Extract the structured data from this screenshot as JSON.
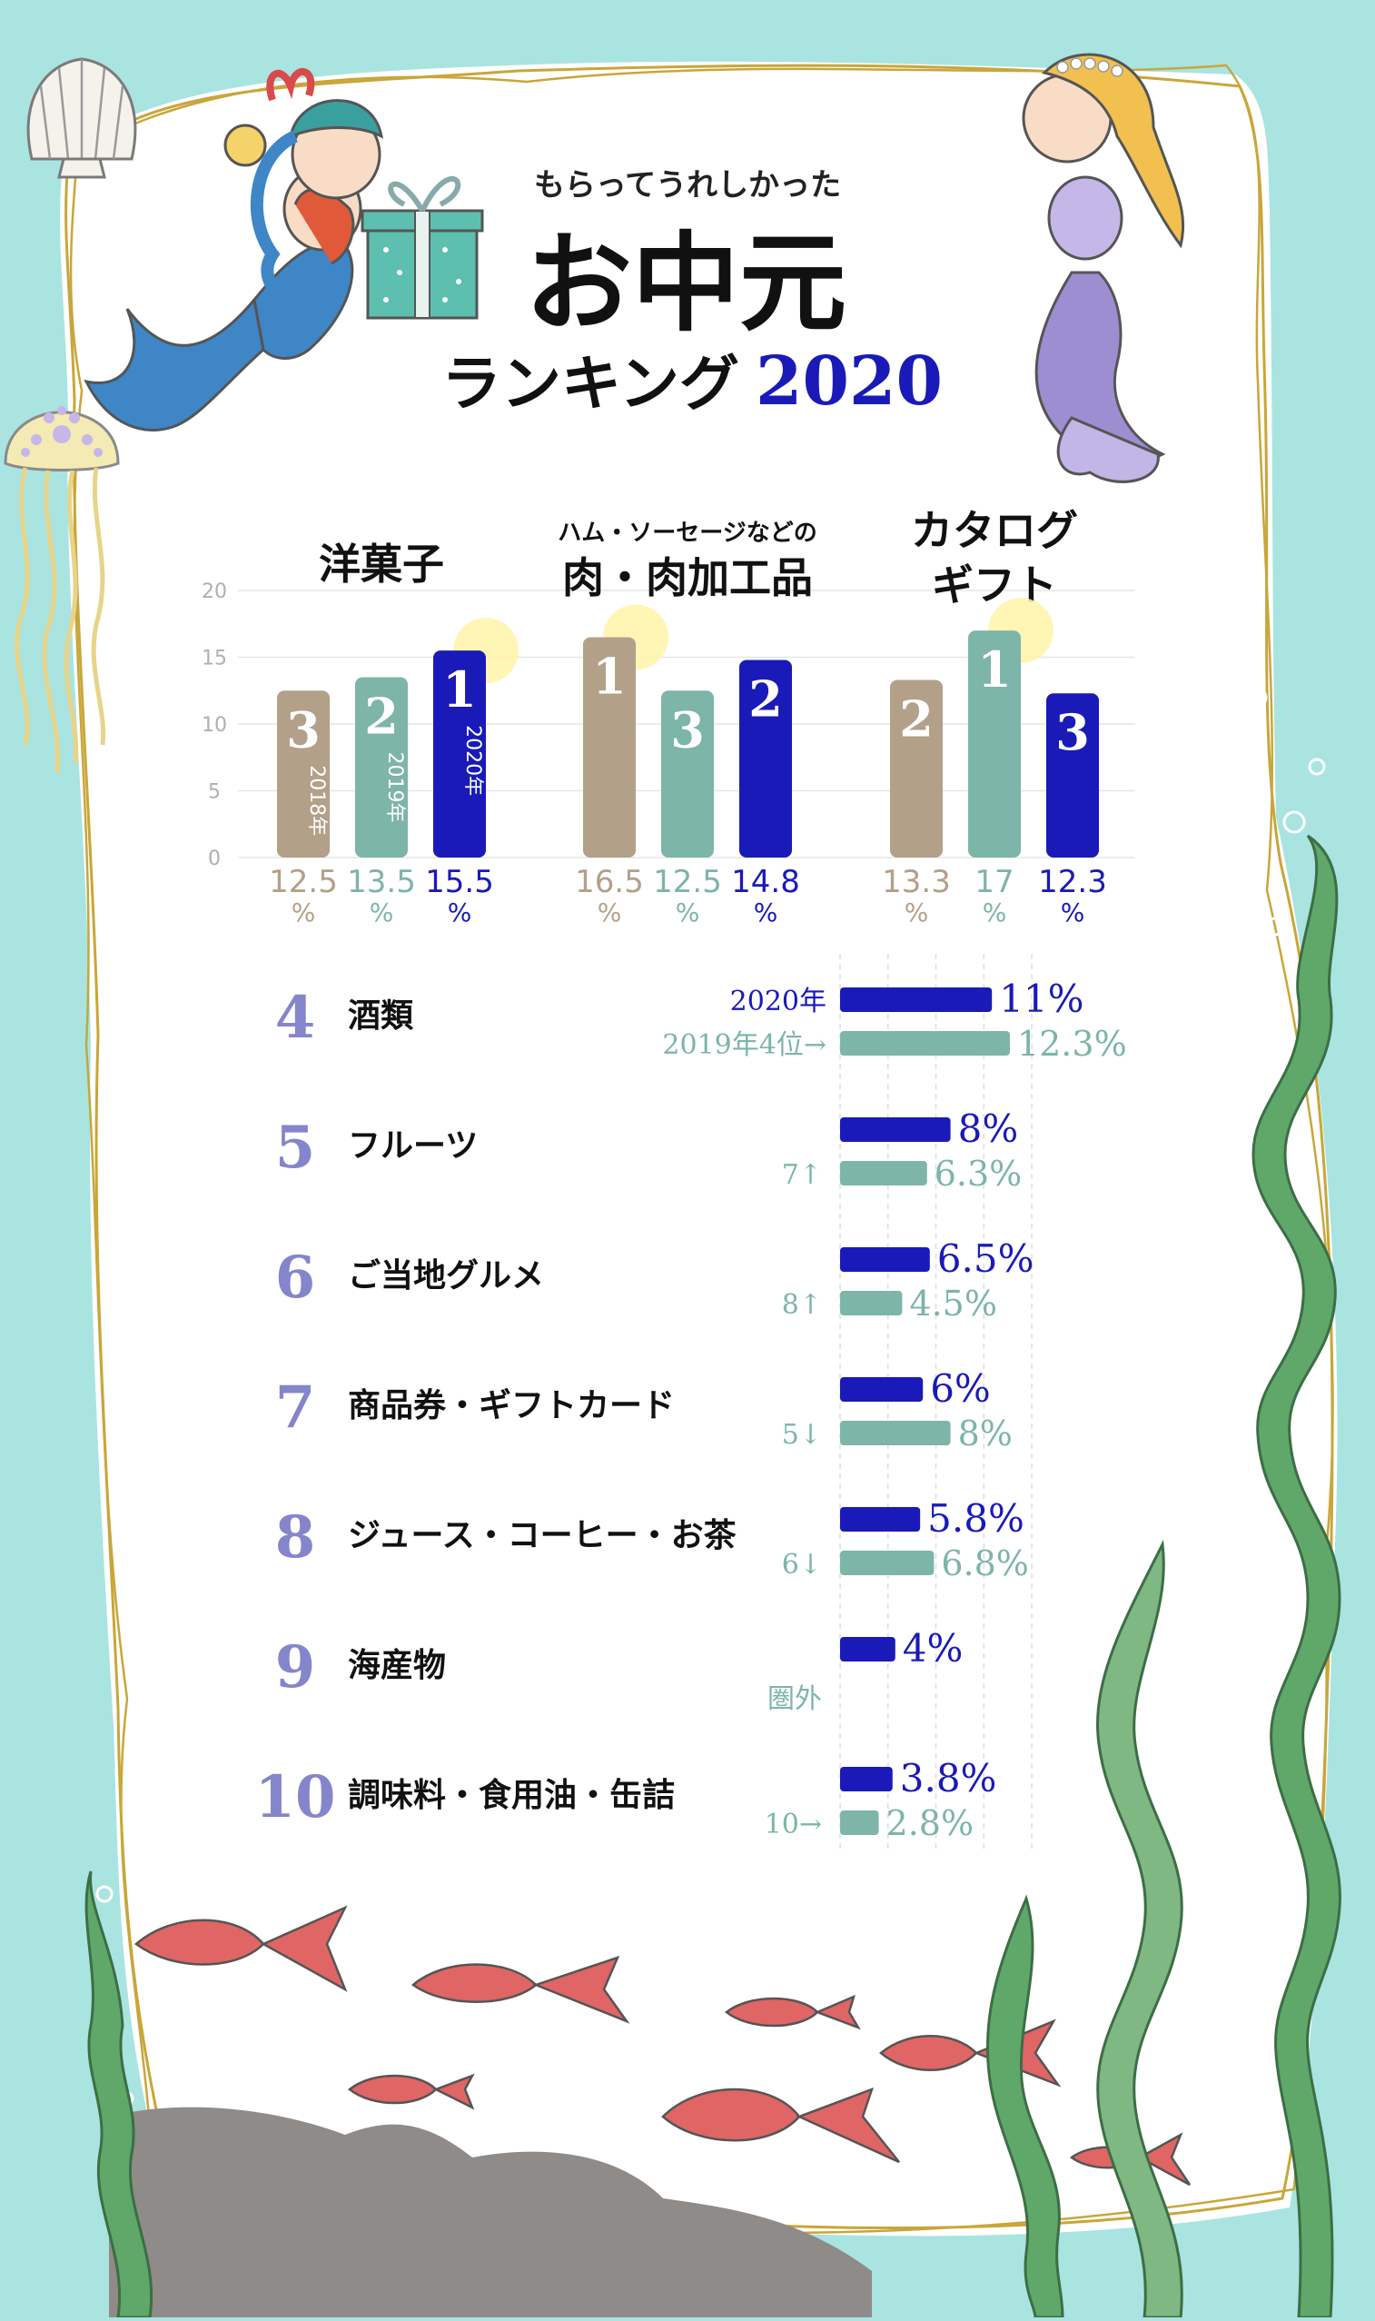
{
  "header": {
    "subtitle": "もらってうれしかった",
    "title": "お中元",
    "title_sub": "ランキング",
    "year": "2020"
  },
  "colors": {
    "y2018": "#b3a089",
    "y2019": "#7db5a8",
    "y2020": "#1a1ab8",
    "rank_number": "#8585cc",
    "seaweed": "#5fa86a",
    "fish": "#e06565"
  },
  "chart_data": [
    {
      "type": "bar",
      "title": "",
      "y_ticks": [
        "20",
        "15",
        "10",
        "5",
        "0"
      ],
      "ylim": [
        0,
        20
      ],
      "grid": true,
      "categories": [
        {
          "name_small": "",
          "name": "洋菓子",
          "name_line2": ""
        },
        {
          "name_small": "ハム・ソーセージなどの",
          "name": "肉・肉加工品",
          "name_line2": ""
        },
        {
          "name_small": "",
          "name": "カタログ",
          "name_line2": "ギフト"
        }
      ],
      "year_labels": [
        "2018年",
        "2019年",
        "2020年"
      ],
      "values": [
        [
          12.5,
          13.5,
          15.5
        ],
        [
          16.5,
          12.5,
          14.8
        ],
        [
          13.3,
          17,
          12.3
        ]
      ],
      "value_labels": [
        [
          "12.5",
          "13.5",
          "15.5"
        ],
        [
          "16.5",
          "12.5",
          "14.8"
        ],
        [
          "13.3",
          "17",
          "12.3"
        ]
      ],
      "ranks": [
        [
          "3",
          "2",
          "1"
        ],
        [
          "1",
          "3",
          "2"
        ],
        [
          "2",
          "1",
          "3"
        ]
      ],
      "unit": "%"
    },
    {
      "type": "bar",
      "orientation": "horizontal",
      "title": "",
      "legend": {
        "y2020": "2020年",
        "y2019": "2019年4位→"
      },
      "items": [
        {
          "rank": "4",
          "name": "酒類",
          "v2020": 11,
          "label2020": "11%",
          "v2019": 12.3,
          "label2019": "12.3%",
          "prev": ""
        },
        {
          "rank": "5",
          "name": "フルーツ",
          "v2020": 8,
          "label2020": "8%",
          "v2019": 6.3,
          "label2019": "6.3%",
          "prev": "7↑"
        },
        {
          "rank": "6",
          "name": "ご当地グルメ",
          "v2020": 6.5,
          "label2020": "6.5%",
          "v2019": 4.5,
          "label2019": "4.5%",
          "prev": "8↑"
        },
        {
          "rank": "7",
          "name": "商品券・ギフトカード",
          "v2020": 6,
          "label2020": "6%",
          "v2019": 8,
          "label2019": "8%",
          "prev": "5↓"
        },
        {
          "rank": "8",
          "name": "ジュース・コーヒー・お茶",
          "v2020": 5.8,
          "label2020": "5.8%",
          "v2019": 6.8,
          "label2019": "6.8%",
          "prev": "6↓"
        },
        {
          "rank": "9",
          "name": "海産物",
          "v2020": 4,
          "label2020": "4%",
          "v2019": null,
          "label2019": "",
          "prev": "圏外"
        },
        {
          "rank": "10",
          "name": "調味料・食用油・缶詰",
          "v2020": 3.8,
          "label2020": "3.8%",
          "v2019": 2.8,
          "label2019": "2.8%",
          "prev": "10→"
        }
      ]
    }
  ]
}
